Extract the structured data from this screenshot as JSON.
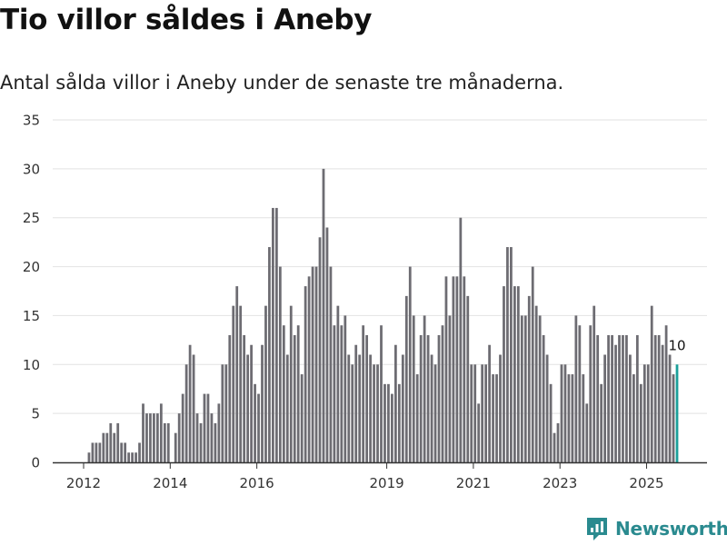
{
  "header": {
    "title": "Tio villor såldes i Aneby",
    "subtitle": "Antal sålda villor i Aneby under de senaste tre månaderna."
  },
  "brand": {
    "name": "Newsworthy"
  },
  "colors": {
    "bar": "#6d6c72",
    "highlight": "#1aa09a",
    "grid": "#e2e2e2",
    "axis": "#333333",
    "brand": "#2a8a8f"
  },
  "chart_data": {
    "type": "bar",
    "title": "Tio villor såldes i Aneby",
    "subtitle": "Antal sålda villor i Aneby under de senaste tre månaderna.",
    "xlabel": "",
    "ylabel": "",
    "ylim": [
      0,
      35
    ],
    "yticks": [
      0,
      5,
      10,
      15,
      20,
      25,
      30,
      35
    ],
    "grid": true,
    "x_start": 2012.0,
    "x_step": 0.0833,
    "xticks": [
      2012,
      2014,
      2016,
      2019,
      2021,
      2023,
      2025
    ],
    "values": [
      0,
      1,
      2,
      2,
      2,
      3,
      3,
      4,
      3,
      4,
      2,
      2,
      1,
      1,
      1,
      2,
      6,
      5,
      5,
      5,
      5,
      6,
      4,
      4,
      0,
      3,
      5,
      7,
      10,
      12,
      11,
      5,
      4,
      7,
      7,
      5,
      4,
      6,
      10,
      10,
      13,
      16,
      18,
      16,
      13,
      11,
      12,
      8,
      7,
      12,
      16,
      22,
      26,
      26,
      20,
      14,
      11,
      16,
      13,
      14,
      9,
      18,
      19,
      20,
      20,
      23,
      30,
      24,
      20,
      14,
      16,
      14,
      15,
      11,
      10,
      12,
      11,
      14,
      13,
      11,
      10,
      10,
      14,
      8,
      8,
      7,
      12,
      8,
      11,
      17,
      20,
      15,
      9,
      13,
      15,
      13,
      11,
      10,
      13,
      14,
      19,
      15,
      19,
      19,
      25,
      19,
      17,
      10,
      10,
      6,
      10,
      10,
      12,
      9,
      9,
      11,
      18,
      22,
      22,
      18,
      18,
      15,
      15,
      17,
      20,
      16,
      15,
      13,
      11,
      8,
      3,
      4,
      10,
      10,
      9,
      9,
      15,
      14,
      9,
      6,
      14,
      16,
      13,
      8,
      11,
      13,
      13,
      12,
      13,
      13,
      13,
      11,
      9,
      13,
      8,
      10,
      10,
      16,
      13,
      13,
      12,
      14,
      11,
      9,
      10
    ],
    "highlight_last": true,
    "annotation": {
      "label": "10",
      "value": 10
    }
  }
}
